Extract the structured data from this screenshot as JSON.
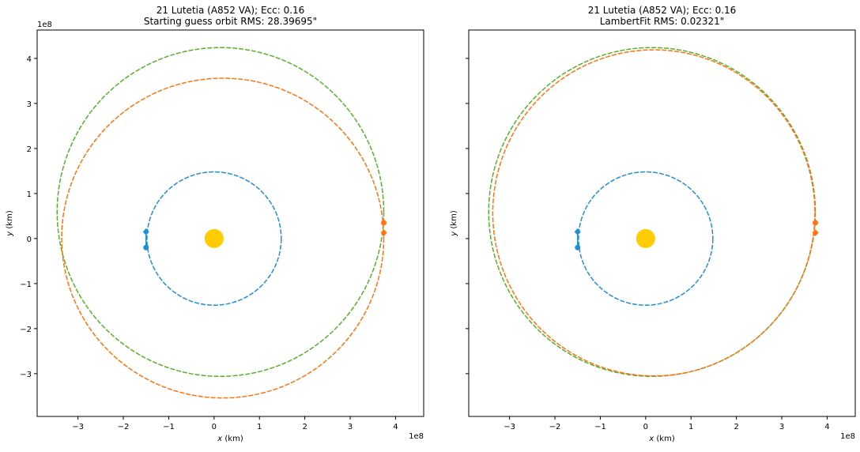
{
  "chart_data": [
    {
      "type": "line",
      "title": "21 Lutetia (A852 VA); Ecc: 0.16",
      "subtitle": "Starting guess orbit RMS: 28.39695\"",
      "xlabel_var": "x",
      "xlabel_unit": " (km)",
      "ylabel_var": "y",
      "ylabel_unit": " (km)",
      "offset_x": "1e8",
      "offset_y": "1e8",
      "xlim": [
        -3.9,
        4.62
      ],
      "ylim": [
        -3.95,
        4.63
      ],
      "xticks": [
        -3,
        -2,
        -1,
        0,
        1,
        2,
        3,
        4
      ],
      "yticks": [
        -3,
        -2,
        -1,
        0,
        1,
        2,
        3,
        4
      ],
      "show_ytick_labels": true,
      "orbits": [
        {
          "name": "earth",
          "color": "#1f8fd8",
          "cx": 0,
          "cy": 0,
          "rx": 1.48,
          "ry": 1.48
        },
        {
          "name": "target",
          "color": "#58b02c",
          "cx": 0.14,
          "cy": 0.59,
          "rx": 3.6,
          "ry": 3.65
        },
        {
          "name": "fit",
          "color": "#ff7410",
          "cx": 0.19,
          "cy": 0.01,
          "rx": 3.55,
          "ry": 3.55
        }
      ],
      "markers": [
        {
          "name": "earth-start",
          "shape": "diamond",
          "color": "#1f8fd8",
          "x": -1.5,
          "y": 0.15
        },
        {
          "name": "earth-end",
          "shape": "dot",
          "color": "#1f8fd8",
          "x": -1.5,
          "y": -0.2
        },
        {
          "name": "target-end",
          "shape": "dot",
          "color": "#ff7410",
          "x": 3.74,
          "y": 0.35
        },
        {
          "name": "target-start",
          "shape": "diamond",
          "color": "#ff7410",
          "x": 3.74,
          "y": 0.13
        }
      ],
      "sun": {
        "x": 0,
        "y": 0,
        "color": "#ffcc00"
      }
    },
    {
      "type": "line",
      "title": "21 Lutetia (A852 VA); Ecc: 0.16",
      "subtitle": "LambertFit RMS: 0.02321\"",
      "xlabel_var": "x",
      "xlabel_unit": " (km)",
      "ylabel_var": "y",
      "ylabel_unit": " (km)",
      "offset_x": "1e8",
      "offset_y": "",
      "xlim": [
        -3.9,
        4.62
      ],
      "ylim": [
        -3.95,
        4.63
      ],
      "xticks": [
        -3,
        -2,
        -1,
        0,
        1,
        2,
        3,
        4
      ],
      "yticks": [
        -3,
        -2,
        -1,
        0,
        1,
        2,
        3,
        4
      ],
      "show_ytick_labels": false,
      "orbits": [
        {
          "name": "earth",
          "color": "#1f8fd8",
          "cx": 0,
          "cy": 0,
          "rx": 1.48,
          "ry": 1.48
        },
        {
          "name": "target",
          "color": "#58b02c",
          "cx": 0.14,
          "cy": 0.59,
          "rx": 3.6,
          "ry": 3.65
        },
        {
          "name": "fit",
          "color": "#ff7410",
          "cx": 0.18,
          "cy": 0.57,
          "rx": 3.55,
          "ry": 3.62
        }
      ],
      "markers": [
        {
          "name": "earth-start",
          "shape": "diamond",
          "color": "#1f8fd8",
          "x": -1.5,
          "y": 0.15
        },
        {
          "name": "earth-end",
          "shape": "dot",
          "color": "#1f8fd8",
          "x": -1.5,
          "y": -0.2
        },
        {
          "name": "target-end",
          "shape": "dot",
          "color": "#ff7410",
          "x": 3.74,
          "y": 0.35
        },
        {
          "name": "target-start",
          "shape": "diamond",
          "color": "#ff7410",
          "x": 3.74,
          "y": 0.13
        }
      ],
      "sun": {
        "x": 0,
        "y": 0,
        "color": "#ffcc00"
      }
    }
  ]
}
